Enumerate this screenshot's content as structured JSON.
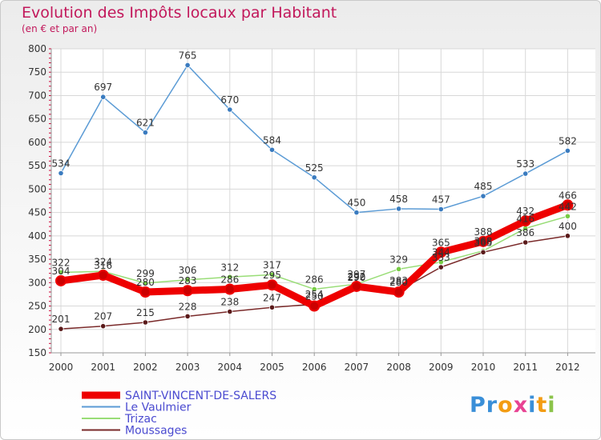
{
  "title": "Evolution des Impôts locaux par Habitant",
  "subtitle": "(en € et par an)",
  "brand": "Proxiti",
  "chart_data": {
    "type": "line",
    "title": "Evolution des Impôts locaux par Habitant",
    "ylabel": "(en € et par an)",
    "xlabel": "",
    "categories": [
      "2000",
      "2001",
      "2002",
      "2003",
      "2004",
      "2005",
      "2006",
      "2007",
      "2008",
      "2009",
      "2010",
      "2011",
      "2012"
    ],
    "ylim": [
      150,
      800
    ],
    "yticks": [
      150,
      200,
      250,
      300,
      350,
      400,
      450,
      500,
      550,
      600,
      650,
      700,
      750,
      800
    ],
    "grid": true,
    "legend_position": "bottom-left",
    "series": [
      {
        "name": "SAINT-VINCENT-DE-SALERS",
        "color": "#ee0000",
        "marker": "#cc0000",
        "values": [
          304,
          316,
          280,
          283,
          286,
          295,
          250,
          292,
          280,
          365,
          388,
          432,
          466
        ]
      },
      {
        "name": "Le Vaulmier",
        "color": "#5b9bd5",
        "marker": "#3a7bbf",
        "values": [
          534,
          697,
          621,
          765,
          670,
          584,
          525,
          450,
          458,
          457,
          485,
          533,
          582
        ]
      },
      {
        "name": "Trizac",
        "color": "#99dd77",
        "marker": "#77cc44",
        "values": [
          322,
          324,
          299,
          306,
          312,
          317,
          286,
          297,
          329,
          344,
          368,
          416,
          442
        ]
      },
      {
        "name": "Moussages",
        "color": "#7a2a2a",
        "marker": "#5a1a1a",
        "values": [
          201,
          207,
          215,
          228,
          238,
          247,
          254,
          290,
          283,
          333,
          365,
          386,
          400
        ]
      }
    ]
  }
}
